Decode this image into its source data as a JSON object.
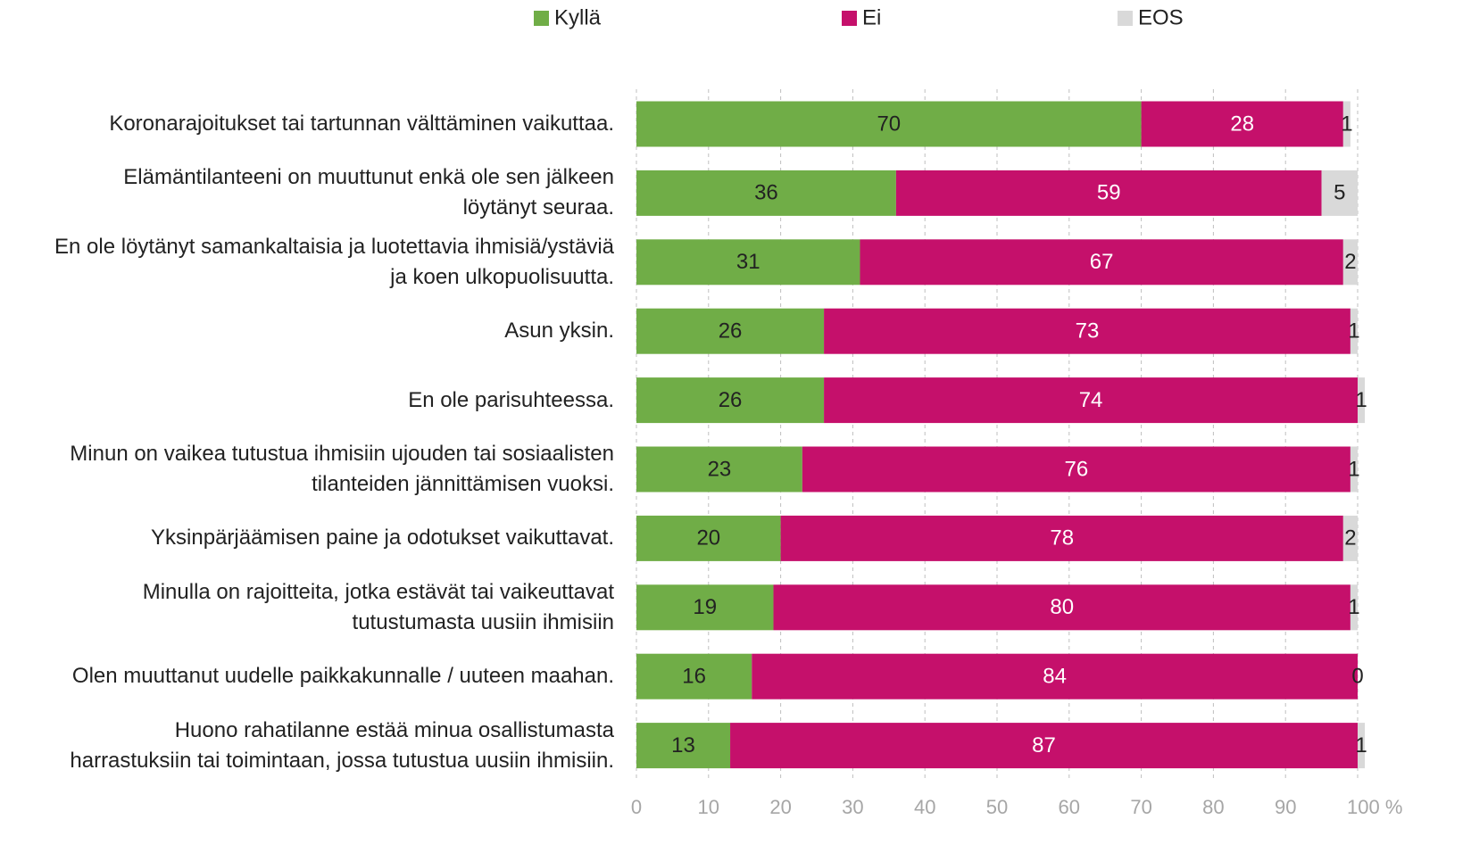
{
  "chart_data": {
    "type": "stacked_bar_horizontal",
    "categories": [
      "Koronarajoitukset tai tartunnan välttäminen vaikuttaa.",
      "Elämäntilanteeni on muuttunut enkä ole sen jälkeen\nlöytänyt seuraa.",
      "En ole löytänyt samankaltaisia ja luotettavia ihmisiä/ystäviä\nja koen ulkopuolisuutta.",
      "Asun yksin.",
      "En ole parisuhteessa.",
      "Minun on vaikea tutustua ihmisiin ujouden tai sosiaalisten\ntilanteiden jännittämisen vuoksi.",
      "Yksinpärjäämisen paine ja odotukset vaikuttavat.",
      "Minulla on rajoitteita, jotka estävät tai vaikeuttavat\ntutustumasta uusiin ihmisiin",
      "Olen muuttanut uudelle paikkakunnalle / uuteen maahan.",
      "Huono rahatilanne estää minua osallistumasta\nharrastuksiin tai toimintaan, jossa tutustua uusiin ihmisiin."
    ],
    "series": [
      {
        "name": "Kyllä",
        "color": "#70ad47",
        "values": [
          70,
          36,
          31,
          26,
          26,
          23,
          20,
          19,
          16,
          13
        ]
      },
      {
        "name": "Ei",
        "color": "#c5106b",
        "values": [
          28,
          59,
          67,
          73,
          74,
          76,
          78,
          80,
          84,
          87
        ]
      },
      {
        "name": "EOS",
        "color": "#d9d9d9",
        "values": [
          1,
          5,
          2,
          1,
          1,
          1,
          2,
          1,
          0,
          1
        ]
      }
    ],
    "xlim": [
      0,
      100
    ],
    "xticks": [
      0,
      10,
      20,
      30,
      40,
      50,
      60,
      70,
      80,
      90,
      {
        "value": 100,
        "label": "100 %"
      }
    ],
    "grid": true,
    "legend": "top"
  }
}
